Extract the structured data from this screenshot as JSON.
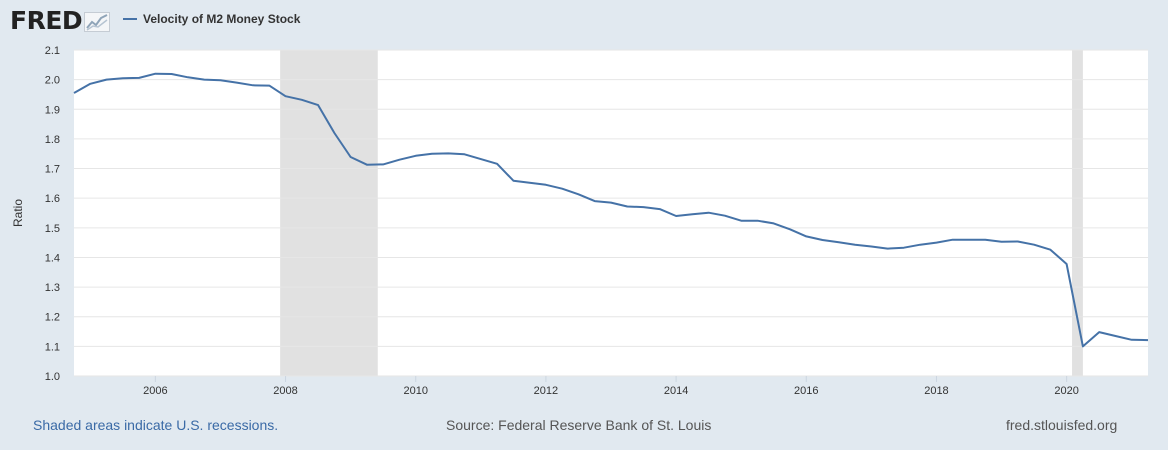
{
  "header": {
    "logo_text": "FRED",
    "logo_icon": "chart-trend-icon"
  },
  "colors": {
    "background": "#e1e9f0",
    "plot_background": "#ffffff",
    "series_line": "#4572a7",
    "recession_shade": "#e1e1e1",
    "gridline": "#e6e6e6",
    "footer_link": "#3a6aa6"
  },
  "footer": {
    "recession_note": "Shaded areas indicate U.S. recessions.",
    "source": "Source: Federal Reserve Bank of St. Louis",
    "site": "fred.stlouisfed.org"
  },
  "chart_data": {
    "type": "line",
    "title": "",
    "xlabel": "",
    "ylabel": "Ratio",
    "ylim": [
      1.0,
      2.1
    ],
    "xlim": [
      2004.75,
      2021.25
    ],
    "yticks": [
      "1.0",
      "1.1",
      "1.2",
      "1.3",
      "1.4",
      "1.5",
      "1.6",
      "1.7",
      "1.8",
      "1.9",
      "2.0",
      "2.1"
    ],
    "xticks": [
      "2006",
      "2008",
      "2010",
      "2012",
      "2014",
      "2016",
      "2018",
      "2020"
    ],
    "grid": true,
    "legend_position": "top-left",
    "recessions": [
      [
        2007.917,
        2009.417
      ],
      [
        2020.083,
        2020.25
      ]
    ],
    "series": [
      {
        "name": "Velocity of M2 Money Stock",
        "x": [
          2004.75,
          2005.0,
          2005.25,
          2005.5,
          2005.75,
          2006.0,
          2006.25,
          2006.5,
          2006.75,
          2007.0,
          2007.25,
          2007.5,
          2007.75,
          2008.0,
          2008.25,
          2008.5,
          2008.75,
          2009.0,
          2009.25,
          2009.5,
          2009.75,
          2010.0,
          2010.25,
          2010.5,
          2010.75,
          2011.0,
          2011.25,
          2011.5,
          2011.75,
          2012.0,
          2012.25,
          2012.5,
          2012.75,
          2013.0,
          2013.25,
          2013.5,
          2013.75,
          2014.0,
          2014.25,
          2014.5,
          2014.75,
          2015.0,
          2015.25,
          2015.5,
          2015.75,
          2016.0,
          2016.25,
          2016.5,
          2016.75,
          2017.0,
          2017.25,
          2017.5,
          2017.75,
          2018.0,
          2018.25,
          2018.5,
          2018.75,
          2019.0,
          2019.25,
          2019.5,
          2019.75,
          2020.0,
          2020.25,
          2020.5,
          2020.75,
          2021.0,
          2021.25
        ],
        "values": [
          1.955,
          1.986,
          2.0,
          2.005,
          2.006,
          2.02,
          2.019,
          2.008,
          2.0,
          1.998,
          1.99,
          1.981,
          1.98,
          1.944,
          1.932,
          1.914,
          1.82,
          1.739,
          1.713,
          1.714,
          1.73,
          1.743,
          1.75,
          1.751,
          1.748,
          1.732,
          1.716,
          1.659,
          1.652,
          1.645,
          1.632,
          1.613,
          1.59,
          1.585,
          1.572,
          1.57,
          1.563,
          1.54,
          1.546,
          1.551,
          1.541,
          1.524,
          1.524,
          1.515,
          1.495,
          1.471,
          1.459,
          1.451,
          1.443,
          1.437,
          1.43,
          1.433,
          1.443,
          1.45,
          1.46,
          1.46,
          1.46,
          1.453,
          1.454,
          1.443,
          1.426,
          1.378,
          1.1,
          1.148,
          1.135,
          1.122,
          1.121
        ]
      }
    ]
  }
}
